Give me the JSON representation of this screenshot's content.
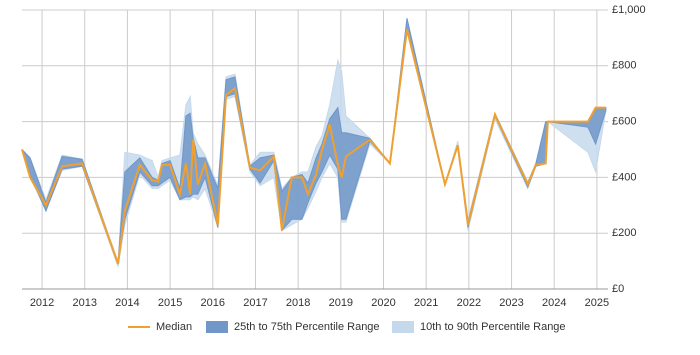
{
  "chart_data": {
    "type": "line",
    "x": [
      2011.53,
      2011.72,
      2012.09,
      2012.47,
      2012.94,
      2013.78,
      2013.94,
      2014.29,
      2014.58,
      2014.72,
      2014.81,
      2015.0,
      2015.23,
      2015.37,
      2015.47,
      2015.54,
      2015.65,
      2015.82,
      2016.12,
      2016.31,
      2016.52,
      2016.87,
      2017.11,
      2017.43,
      2017.62,
      2017.85,
      2018.09,
      2018.23,
      2018.42,
      2018.56,
      2018.74,
      2018.93,
      2019.02,
      2019.12,
      2019.68,
      2020.15,
      2020.55,
      2021.44,
      2021.74,
      2021.98,
      2022.61,
      2023.38,
      2023.57,
      2023.8,
      2023.85,
      2024.79,
      2024.97,
      2025.21
    ],
    "series": [
      {
        "name": "10th to 90th Percentile Range",
        "color": "#c6d9ec",
        "low": [
          500,
          400,
          280,
          425,
          440,
          80,
          230,
          410,
          360,
          360,
          370,
          390,
          320,
          320,
          320,
          330,
          320,
          360,
          220,
          680,
          690,
          420,
          370,
          400,
          210,
          230,
          250,
          290,
          350,
          400,
          450,
          400,
          240,
          240,
          520,
          450,
          930,
          375,
          515,
          210,
          610,
          360,
          440,
          450,
          600,
          490,
          420,
          640
        ],
        "high": [
          500,
          470,
          320,
          480,
          465,
          100,
          490,
          480,
          460,
          400,
          460,
          470,
          480,
          660,
          690,
          560,
          520,
          480,
          370,
          760,
          770,
          445,
          490,
          490,
          360,
          400,
          420,
          420,
          510,
          550,
          660,
          820,
          780,
          620,
          540,
          450,
          970,
          375,
          530,
          250,
          630,
          385,
          450,
          600,
          600,
          600,
          650,
          650
        ]
      },
      {
        "name": "25th to 75th Percentile Range",
        "color": "#7097c7",
        "low": [
          500,
          410,
          280,
          430,
          440,
          90,
          250,
          420,
          370,
          370,
          380,
          400,
          320,
          330,
          330,
          340,
          340,
          400,
          220,
          690,
          700,
          430,
          380,
          460,
          210,
          250,
          250,
          310,
          380,
          420,
          480,
          430,
          250,
          250,
          530,
          450,
          930,
          375,
          515,
          220,
          620,
          365,
          440,
          450,
          600,
          580,
          520,
          640
        ],
        "high": [
          500,
          470,
          310,
          475,
          465,
          90,
          420,
          470,
          400,
          390,
          450,
          460,
          360,
          620,
          630,
          540,
          470,
          470,
          360,
          750,
          760,
          440,
          470,
          480,
          350,
          400,
          410,
          380,
          470,
          520,
          610,
          650,
          560,
          560,
          540,
          450,
          970,
          375,
          515,
          240,
          630,
          380,
          450,
          600,
          600,
          600,
          650,
          650
        ]
      },
      {
        "name": "Median",
        "color": "#f0a030",
        "values": [
          500,
          400,
          300,
          440,
          450,
          90,
          280,
          445,
          390,
          385,
          445,
          445,
          340,
          450,
          340,
          535,
          375,
          450,
          230,
          695,
          720,
          435,
          425,
          475,
          210,
          400,
          400,
          340,
          410,
          500,
          590,
          445,
          400,
          475,
          535,
          450,
          930,
          375,
          515,
          230,
          625,
          375,
          445,
          450,
          600,
          600,
          650,
          650
        ]
      }
    ],
    "xlim": [
      2011.53,
      2025.26
    ],
    "xticks": [
      2012,
      2013,
      2014,
      2015,
      2016,
      2017,
      2018,
      2019,
      2020,
      2021,
      2022,
      2023,
      2024,
      2025
    ],
    "ylim": [
      0,
      1000
    ],
    "yticks": [
      {
        "value": 0,
        "label": "£0"
      },
      {
        "value": 200,
        "label": "£200"
      },
      {
        "value": 400,
        "label": "£400"
      },
      {
        "value": 600,
        "label": "£600"
      },
      {
        "value": 800,
        "label": "£800"
      },
      {
        "value": 1000,
        "label": "£1,000"
      }
    ],
    "grid": true,
    "legend": "bottom"
  }
}
